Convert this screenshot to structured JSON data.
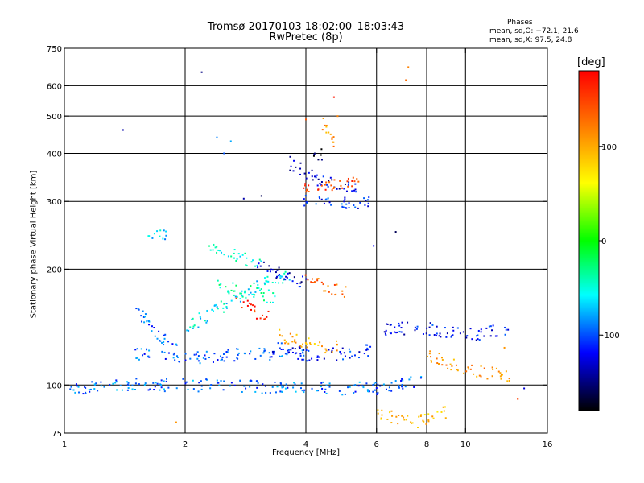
{
  "chart_data": {
    "type": "scatter",
    "title": "Tromsø 20170103 18:02:00–18:03:43",
    "subtitle": "RwPretec (8p)",
    "xlabel": "Frequency [MHz]",
    "ylabel": "Stationary phase Virtual Height [km]",
    "xscale": "log",
    "yscale": "log",
    "xlim": [
      1,
      16
    ],
    "ylim": [
      75,
      750
    ],
    "xticks": [
      1,
      2,
      4,
      6,
      8,
      10,
      16
    ],
    "yticks": [
      75,
      100,
      200,
      300,
      400,
      500,
      600,
      750
    ],
    "x_gridlines": [
      2,
      4,
      6,
      8,
      10
    ],
    "y_gridlines": [
      100,
      200,
      300,
      400,
      500,
      600
    ],
    "grid": true,
    "stats": {
      "heading": "Phases",
      "line1": "mean, sd,O: −72.1, 21.6",
      "line2": "mean, sd,X:  97.5, 24.8"
    },
    "colorbar": {
      "unit": "[deg]",
      "min": -180,
      "max": 180,
      "ticks": [
        100,
        0,
        -100
      ]
    },
    "colors": {
      "colorbar_stops": [
        "#ff0000",
        "#ff8000",
        "#ffff00",
        "#00ff00",
        "#00ffff",
        "#0000ff",
        "#000000"
      ],
      "traces": [
        "#1e3cff",
        "#0a0ad0",
        "#32b4ff",
        "#00e0e0",
        "#ffe000",
        "#ff9000",
        "#ff3000",
        "#8000c0",
        "#a0ff00"
      ]
    },
    "series": [
      {
        "segments": [
          [
            1.0,
            97,
            1.3,
            100
          ],
          [
            1.3,
            100,
            2.0,
            100
          ],
          [
            2.0,
            100,
            4.0,
            98
          ],
          [
            4.0,
            98,
            6.0,
            98
          ],
          [
            6.0,
            98,
            8.0,
            103
          ]
        ],
        "phase": -95
      },
      {
        "segments": [
          [
            1.5,
            120,
            2.2,
            118
          ],
          [
            2.2,
            118,
            3.0,
            121
          ],
          [
            3.0,
            121,
            4.0,
            119
          ]
        ],
        "phase": -100
      },
      {
        "segments": [
          [
            3.3,
            125,
            4.2,
            119
          ],
          [
            4.2,
            119,
            5.2,
            121
          ],
          [
            5.2,
            121,
            5.8,
            123
          ]
        ],
        "phase": -115
      },
      {
        "segments": [
          [
            1.5,
            160,
            1.7,
            135
          ],
          [
            1.7,
            135,
            1.9,
            125
          ]
        ],
        "phase": -95
      },
      {
        "segments": [
          [
            2.0,
            140,
            2.6,
            165
          ],
          [
            2.6,
            165,
            3.2,
            185
          ],
          [
            3.2,
            185,
            3.7,
            195
          ]
        ],
        "phase": -60
      },
      {
        "segments": [
          [
            2.3,
            230,
            2.6,
            220
          ],
          [
            2.6,
            220,
            3.1,
            205
          ]
        ],
        "phase": -50
      },
      {
        "segments": [
          [
            3.0,
            205,
            3.5,
            195
          ],
          [
            3.5,
            195,
            4.0,
            182
          ]
        ],
        "phase": -130
      },
      {
        "segments": [
          [
            2.4,
            180,
            2.9,
            175
          ],
          [
            2.9,
            175,
            3.4,
            168
          ]
        ],
        "phase": -45
      },
      {
        "segments": [
          [
            3.6,
            380,
            4.3,
            340
          ],
          [
            4.3,
            340,
            5.4,
            323
          ]
        ],
        "phase": -130
      },
      {
        "segments": [
          [
            3.9,
            330,
            4.6,
            330
          ],
          [
            4.6,
            330,
            5.4,
            335
          ]
        ],
        "phase": 150
      },
      {
        "segments": [
          [
            3.9,
            302,
            5.2,
            298
          ],
          [
            5.2,
            298,
            5.8,
            298
          ]
        ],
        "phase": -110
      },
      {
        "segments": [
          [
            4.0,
            190,
            4.5,
            180
          ],
          [
            4.5,
            180,
            5.0,
            175
          ]
        ],
        "phase": 130
      },
      {
        "segments": [
          [
            3.4,
            135,
            4.0,
            128
          ],
          [
            4.0,
            128,
            4.8,
            125
          ]
        ],
        "phase": 100
      },
      {
        "segments": [
          [
            6.0,
            140,
            8.0,
            140
          ],
          [
            8.0,
            140,
            10.5,
            135
          ],
          [
            10.5,
            135,
            13.0,
            140
          ]
        ],
        "phase": -120
      },
      {
        "segments": [
          [
            8.0,
            120,
            10.0,
            110
          ],
          [
            10.0,
            110,
            13.0,
            105
          ]
        ],
        "phase": 110
      },
      {
        "segments": [
          [
            2.7,
            165,
            3.2,
            150
          ]
        ],
        "phase": 160
      },
      {
        "segments": [
          [
            4.2,
            400,
            4.5,
            400
          ]
        ],
        "phase": -170
      },
      {
        "segments": [
          [
            4.4,
            480,
            4.7,
            420
          ]
        ],
        "phase": 110
      },
      {
        "segments": [
          [
            1.6,
            240,
            1.8,
            245
          ]
        ],
        "phase": -70
      },
      {
        "segments": [
          [
            6.0,
            85,
            7.5,
            80
          ],
          [
            7.5,
            80,
            9.0,
            85
          ]
        ],
        "phase": 90
      }
    ],
    "points": [
      [
        1.4,
        460,
        -140
      ],
      [
        2.2,
        650,
        -150
      ],
      [
        2.6,
        430,
        -80
      ],
      [
        2.4,
        440,
        -90
      ],
      [
        2.5,
        400,
        -100
      ],
      [
        7.2,
        670,
        120
      ],
      [
        7.1,
        620,
        130
      ],
      [
        4.7,
        560,
        170
      ],
      [
        6.7,
        250,
        -160
      ],
      [
        5.9,
        230,
        -120
      ],
      [
        2.8,
        305,
        -140
      ],
      [
        3.1,
        310,
        -160
      ],
      [
        1.9,
        80,
        110
      ],
      [
        4.0,
        490,
        140
      ],
      [
        4.8,
        500,
        120
      ],
      [
        13.5,
        92,
        150
      ],
      [
        14.0,
        98,
        -130
      ],
      [
        12.5,
        125,
        110
      ]
    ]
  }
}
